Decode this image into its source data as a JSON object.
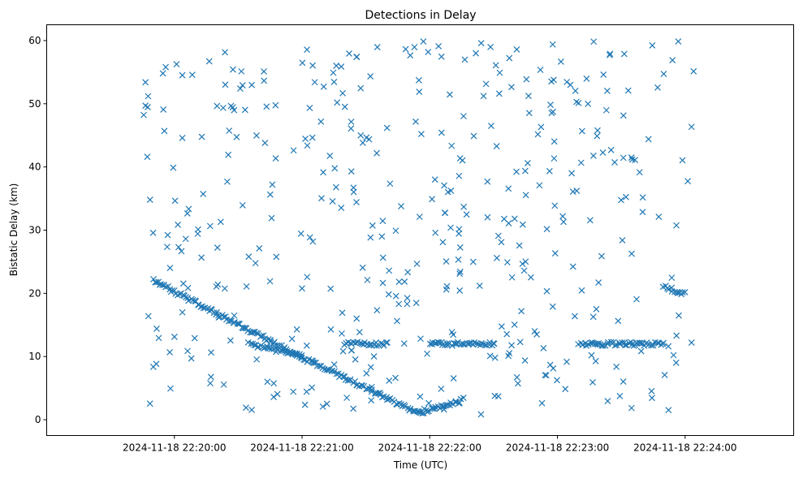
{
  "chart_data": {
    "type": "scatter",
    "title": "Detections in Delay",
    "xlabel": "Time (UTC)",
    "ylabel": "Bistatic Delay (km)",
    "marker": "x",
    "color": "#1f77b4",
    "grid": false,
    "x_range_sec": [
      -60,
      291
    ],
    "ylim": [
      -2.5,
      62.5
    ],
    "x_ticks": [
      {
        "label": "2024-11-18 22:20:00",
        "sec": 0
      },
      {
        "label": "2024-11-18 22:21:00",
        "sec": 60
      },
      {
        "label": "2024-11-18 22:22:00",
        "sec": 120
      },
      {
        "label": "2024-11-18 22:23:00",
        "sec": 180
      },
      {
        "label": "2024-11-18 22:24:00",
        "sec": 240
      }
    ],
    "y_ticks": [
      0,
      10,
      20,
      30,
      40,
      50,
      60
    ],
    "tracks": [
      {
        "t_start": "22:19:50",
        "t_end": "22:21:05",
        "delay_start": 22,
        "delay_end": 9
      },
      {
        "t_start": "22:21:05",
        "t_end": "22:21:55",
        "delay_start": 9,
        "delay_end": 1
      },
      {
        "t_start": "22:21:55",
        "t_end": "22:22:15",
        "delay_start": 1,
        "delay_end": 3
      },
      {
        "t_start": "22:20:35",
        "t_end": "22:21:00",
        "delay_start": 12,
        "delay_end": 10
      },
      {
        "t_start": "22:21:20",
        "t_end": "22:21:40",
        "delay_start": 12,
        "delay_end": 12
      },
      {
        "t_start": "22:22:00",
        "t_end": "22:22:30",
        "delay_start": 12,
        "delay_end": 12
      },
      {
        "t_start": "22:23:10",
        "t_end": "22:23:50",
        "delay_start": 12,
        "delay_end": 12
      },
      {
        "t_start": "22:23:50",
        "t_end": "22:24:00",
        "delay_start": 21,
        "delay_end": 20
      }
    ],
    "noise_points": 430,
    "noise_delay_range": [
      0.5,
      60
    ]
  }
}
